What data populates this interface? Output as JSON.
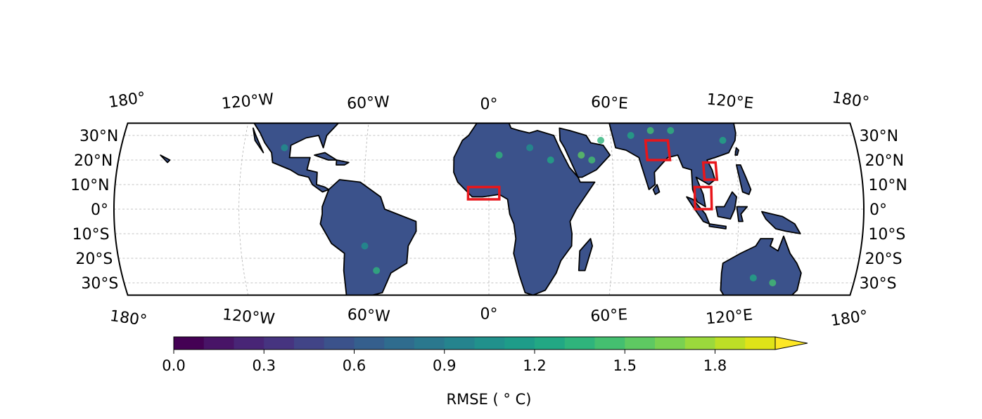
{
  "map": {
    "projection": "robinson-style",
    "lat_range": [
      -35,
      35
    ],
    "lon_range": [
      -180,
      180
    ],
    "gridlines": true,
    "lon_labels": [
      "180°",
      "120°W",
      "60°W",
      "0°",
      "60°E",
      "120°E",
      "180°"
    ],
    "lon_values": [
      -180,
      -120,
      -60,
      0,
      60,
      120,
      180
    ],
    "lat_labels": [
      "30°N",
      "20°N",
      "10°N",
      "0°",
      "10°S",
      "20°S",
      "30°S"
    ],
    "lat_values": [
      30,
      20,
      10,
      0,
      -10,
      -20,
      -30
    ],
    "land_color": "#3b528b",
    "highlight_color": "#e8161b",
    "highlight_boxes": [
      {
        "lon_min": -10,
        "lon_max": 5,
        "lat_min": 4,
        "lat_max": 9
      },
      {
        "lon_min": 77,
        "lon_max": 88,
        "lat_min": 20,
        "lat_max": 28
      },
      {
        "lon_min": 104,
        "lon_max": 110,
        "lat_min": 12,
        "lat_max": 19
      },
      {
        "lon_min": 99,
        "lon_max": 107,
        "lat_min": 0,
        "lat_max": 9
      }
    ]
  },
  "colorbar": {
    "label": "RMSE ($^\\circ$C)",
    "label_display": "RMSE ( ° C)",
    "vmin": 0.0,
    "vmax": 2.0,
    "extend": "max",
    "colormap": "viridis",
    "tick_values": [
      0.0,
      0.3,
      0.6,
      0.9,
      1.2,
      1.5,
      1.8
    ],
    "tick_labels": [
      "0.0",
      "0.3",
      "0.6",
      "0.9",
      "1.2",
      "1.5",
      "1.8"
    ],
    "colors": [
      "#440154",
      "#481467",
      "#482576",
      "#463480",
      "#414487",
      "#3b528b",
      "#355f8d",
      "#2f6c8e",
      "#2a788e",
      "#25848e",
      "#21918c",
      "#1e9c89",
      "#22a884",
      "#2fb47c",
      "#44bf70",
      "#5ec962",
      "#7ad151",
      "#9bd93c",
      "#bddf26",
      "#dfe318",
      "#fde725"
    ]
  }
}
